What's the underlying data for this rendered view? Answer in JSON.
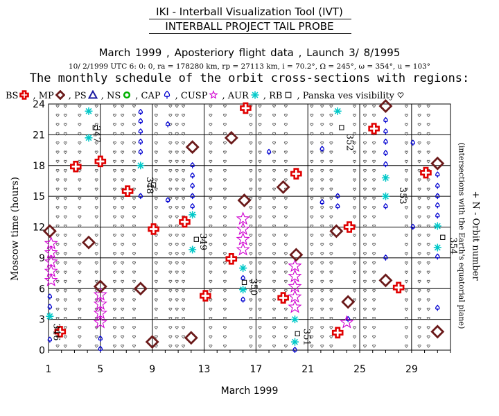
{
  "header": {
    "app_title": "IKI - Interball Visualization Tool (IVT)",
    "sub_title": "INTERBALL PROJECT TAIL PROBE",
    "info_line": "March 1999 ,     Aposteriory flight data     ,  Launch  3/ 8/1995",
    "params_line": "10/ 2/1999 UTC  6: 0: 0, ra = 178280 km, rp =  27113 km, i = 70.2°, Ω = 245°, ω = 354°, u = 103°",
    "schedule_title": "The monthly schedule of the orbit cross-sections with regions:"
  },
  "legend": [
    {
      "label": "BS",
      "symbol": "cross",
      "color": "#e00000"
    },
    {
      "label": ", MP",
      "symbol": "diamond",
      "color": "#6b1a1a"
    },
    {
      "label": ", PS",
      "symbol": "triangle",
      "color": "#1a1aa0"
    },
    {
      "label": ", NS",
      "symbol": "circle",
      "color": "#00b000"
    },
    {
      "label": ", CAP",
      "symbol": "club",
      "color": "#0000d0"
    },
    {
      "label": ", CUSP",
      "symbol": "star",
      "color": "#d000d0"
    },
    {
      "label": ", AUR",
      "symbol": "asterisk",
      "color": "#00c8c8"
    },
    {
      "label": ", RB",
      "symbol": "square",
      "color": "#000000"
    },
    {
      "label": ", Panska ves visibility",
      "symbol": "heart",
      "color": "#000000"
    }
  ],
  "chart_data": {
    "type": "scatter",
    "xlabel": "March 1999",
    "ylabel": "Moscow time (hours)",
    "right_label": "+ N -  Orbit number",
    "right_sublabel": "(intersections with the Earth's equatorial plane)",
    "xlim": [
      1,
      32
    ],
    "ylim": [
      0,
      24
    ],
    "x_ticks": [
      1,
      5,
      9,
      13,
      17,
      21,
      25,
      29
    ],
    "y_ticks": [
      0,
      3,
      6,
      9,
      12,
      15,
      18,
      21,
      24
    ],
    "grid": true,
    "colors": {
      "BS": "#e00000",
      "MP": "#6b1a1a",
      "CAP": "#0000d0",
      "CUSP": "#d000d0",
      "AUR": "#00c8c8",
      "RB": "#000000",
      "PV": "#555555"
    },
    "BS": [
      [
        1.9,
        1.8
      ],
      [
        3.1,
        17.9
      ],
      [
        5.0,
        18.4
      ],
      [
        7.1,
        15.5
      ],
      [
        9.1,
        11.8
      ],
      [
        11.5,
        12.5
      ],
      [
        13.1,
        5.3
      ],
      [
        15.1,
        8.9
      ],
      [
        16.2,
        23.6
      ],
      [
        19.1,
        5.1
      ],
      [
        20.1,
        17.2
      ],
      [
        23.3,
        1.7
      ],
      [
        24.2,
        12.0
      ],
      [
        26.1,
        21.6
      ],
      [
        28.0,
        6.1
      ],
      [
        30.1,
        17.3
      ]
    ],
    "MP": [
      [
        1.1,
        11.6
      ],
      [
        4.1,
        10.5
      ],
      [
        5.0,
        6.2
      ],
      [
        8.1,
        6.0
      ],
      [
        9.0,
        0.8
      ],
      [
        12.0,
        1.2
      ],
      [
        12.1,
        19.8
      ],
      [
        15.1,
        20.7
      ],
      [
        16.1,
        14.6
      ],
      [
        19.1,
        15.9
      ],
      [
        20.1,
        9.3
      ],
      [
        23.2,
        11.6
      ],
      [
        24.1,
        4.7
      ],
      [
        27.0,
        23.8
      ],
      [
        27.0,
        6.8
      ],
      [
        31.0,
        18.2
      ],
      [
        31.0,
        1.8
      ]
    ],
    "CUSP": [
      [
        1.2,
        10.4
      ],
      [
        1.2,
        9.5
      ],
      [
        1.2,
        8.6
      ],
      [
        1.2,
        7.7
      ],
      [
        1.2,
        6.8
      ],
      [
        5.0,
        5.4
      ],
      [
        5.0,
        4.5
      ],
      [
        5.0,
        3.6
      ],
      [
        5.0,
        2.7
      ],
      [
        16.0,
        12.8
      ],
      [
        16.0,
        11.8
      ],
      [
        16.0,
        10.8
      ],
      [
        16.0,
        9.8
      ],
      [
        20.0,
        8.2
      ],
      [
        20.0,
        7.2
      ],
      [
        20.0,
        6.2
      ],
      [
        20.0,
        5.2
      ],
      [
        20.0,
        4.2
      ],
      [
        24.0,
        2.7
      ]
    ],
    "AUR": [
      [
        4.1,
        23.3
      ],
      [
        4.1,
        20.7
      ],
      [
        8.1,
        18.0
      ],
      [
        12.1,
        13.2
      ],
      [
        12.1,
        9.8
      ],
      [
        16.0,
        8.0
      ],
      [
        16.0,
        5.9
      ],
      [
        20.0,
        3.0
      ],
      [
        20.0,
        0.8
      ],
      [
        23.3,
        23.3
      ],
      [
        27.0,
        16.8
      ],
      [
        27.0,
        15.0
      ],
      [
        31.0,
        12.1
      ],
      [
        31.0,
        10.0
      ],
      [
        1.1,
        3.3
      ]
    ],
    "CAP": [
      [
        1.1,
        1.0
      ],
      [
        1.1,
        5.2
      ],
      [
        1.1,
        4.2
      ],
      [
        5.0,
        1.1
      ],
      [
        5.0,
        0.1
      ],
      [
        8.1,
        23.2
      ],
      [
        8.1,
        22.3
      ],
      [
        8.1,
        21.3
      ],
      [
        8.1,
        20.3
      ],
      [
        8.1,
        19.3
      ],
      [
        8.1,
        15.0
      ],
      [
        10.2,
        22.0
      ],
      [
        10.2,
        14.6
      ],
      [
        12.1,
        18.0
      ],
      [
        12.1,
        17.0
      ],
      [
        12.1,
        16.0
      ],
      [
        12.1,
        15.0
      ],
      [
        12.1,
        14.0
      ],
      [
        16.0,
        4.9
      ],
      [
        16.0,
        7.0
      ],
      [
        18.0,
        19.3
      ],
      [
        20.0,
        0.0
      ],
      [
        22.1,
        19.6
      ],
      [
        22.1,
        14.4
      ],
      [
        23.3,
        15.0
      ],
      [
        23.3,
        14.0
      ],
      [
        24.1,
        3.0
      ],
      [
        27.0,
        22.4
      ],
      [
        27.0,
        21.3
      ],
      [
        27.0,
        20.3
      ],
      [
        27.0,
        19.2
      ],
      [
        27.0,
        18.1
      ],
      [
        27.0,
        14.0
      ],
      [
        27.0,
        9.0
      ],
      [
        29.1,
        20.2
      ],
      [
        29.1,
        12.0
      ],
      [
        31.0,
        17.1
      ],
      [
        31.0,
        16.0
      ],
      [
        31.0,
        15.0
      ],
      [
        31.0,
        14.1
      ],
      [
        31.0,
        13.1
      ],
      [
        31.0,
        9.1
      ],
      [
        31.0,
        4.1
      ]
    ],
    "RB": [
      [
        4.6,
        21.7
      ],
      [
        9.1,
        16.1
      ],
      [
        12.4,
        10.8
      ],
      [
        16.1,
        6.6
      ],
      [
        20.2,
        1.6
      ],
      [
        23.6,
        21.7
      ],
      [
        31.4,
        11.0
      ]
    ],
    "orbit_labels": [
      {
        "n": "346",
        "x": 1.4,
        "y": 2.6
      },
      {
        "n": "347",
        "x": 4.5,
        "y": 21.9
      },
      {
        "n": "348",
        "x": 8.6,
        "y": 16.9
      },
      {
        "n": "349",
        "x": 12.7,
        "y": 11.4
      },
      {
        "n": "350",
        "x": 16.6,
        "y": 7.0
      },
      {
        "n": "351",
        "x": 20.7,
        "y": 2.1
      },
      {
        "n": "352",
        "x": 24.0,
        "y": 21.1
      },
      {
        "n": "353",
        "x": 28.1,
        "y": 15.9
      },
      {
        "n": "354",
        "x": 32.0,
        "y": 11.0
      }
    ],
    "pv_columns": [
      1.7,
      2.3,
      3.4,
      4.7,
      6.1,
      6.7,
      7.6,
      9.3,
      10.4,
      10.9,
      11.4,
      13.5,
      14.6,
      16.6,
      17.3,
      18.4,
      19.3,
      21.3,
      22.1,
      22.8,
      24.6,
      25.4,
      26.1,
      28.6,
      29.6,
      30.3
    ]
  }
}
